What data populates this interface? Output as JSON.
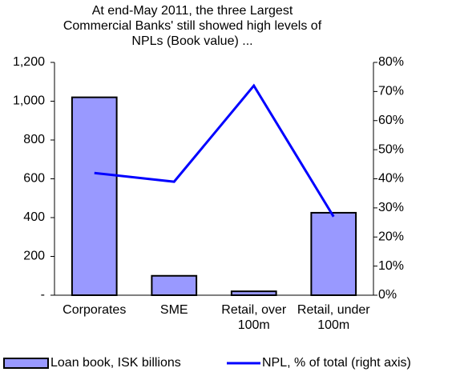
{
  "chart_data": {
    "type": "bar",
    "title": "At end-May 2011, the three Largest Commercial Banks' still showed high levels of NPLs  (Book value) ...",
    "categories": [
      "Corporates",
      "SME",
      "Retail, over 100m",
      "Retail, under 100m"
    ],
    "series": [
      {
        "name": "Loan book, ISK billions",
        "type": "bar",
        "color": "#9999ff",
        "values": [
          1020,
          100,
          20,
          425
        ]
      },
      {
        "name": "NPL, % of total (right axis)",
        "type": "line",
        "axis": "y2",
        "color": "#0000ff",
        "values": [
          42,
          39,
          72,
          27
        ]
      }
    ],
    "ylim": [
      0,
      1200
    ],
    "yticks": [
      {
        "value": 0,
        "label": "-"
      },
      200,
      400,
      600,
      800,
      {
        "value": 1000,
        "label": "1,000"
      },
      {
        "value": 1200,
        "label": "1,200"
      }
    ],
    "y2lim": [
      0,
      80
    ],
    "y2ticks": [
      {
        "value": 0,
        "label": "0%"
      },
      {
        "value": 10,
        "label": "10%"
      },
      {
        "value": 20,
        "label": "20%"
      },
      {
        "value": 30,
        "label": "30%"
      },
      {
        "value": 40,
        "label": "40%"
      },
      {
        "value": 50,
        "label": "50%"
      },
      {
        "value": 60,
        "label": "60%"
      },
      {
        "value": 70,
        "label": "70%"
      },
      {
        "value": 80,
        "label": "80%"
      }
    ],
    "legend": "bottom"
  }
}
